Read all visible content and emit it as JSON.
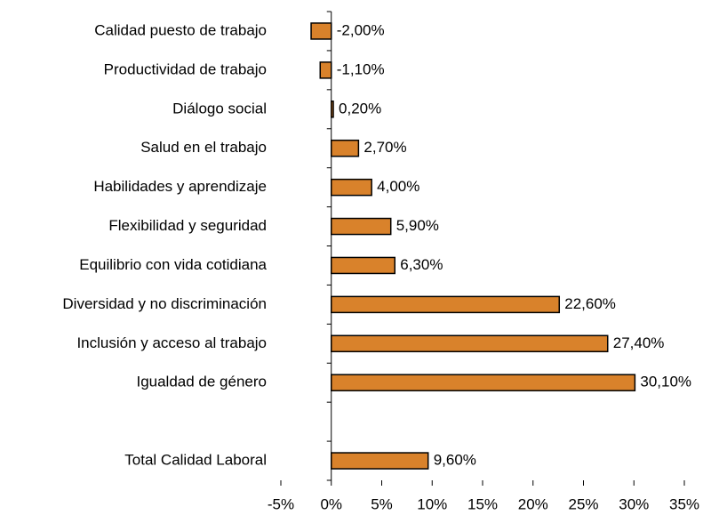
{
  "chart_data": {
    "type": "bar",
    "orientation": "horizontal",
    "categories": [
      "Calidad puesto de trabajo",
      "Productividad de trabajo",
      "Diálogo social",
      "Salud en el trabajo",
      "Habilidades y aprendizaje",
      "Flexibilidad y seguridad",
      "Equilibrio con vida cotidiana",
      "Diversidad y no discriminación",
      "Inclusión y acceso al trabajo",
      "Igualdad de género",
      null,
      "Total Calidad Laboral"
    ],
    "values": [
      -2.0,
      -1.1,
      0.2,
      2.7,
      4.0,
      5.9,
      6.3,
      22.6,
      27.4,
      30.1,
      null,
      9.6
    ],
    "value_labels": [
      "-2,00%",
      "-1,10%",
      "0,20%",
      "2,70%",
      "4,00%",
      "5,90%",
      "6,30%",
      "22,60%",
      "27,40%",
      "30,10%",
      null,
      "9,60%"
    ],
    "color": "#d9822b",
    "xlim": [
      -5,
      35
    ],
    "xticks": [
      {
        "value": -5,
        "label": "-5%"
      },
      {
        "value": 0,
        "label": "0%"
      },
      {
        "value": 5,
        "label": "5%"
      },
      {
        "value": 10,
        "label": "10%"
      },
      {
        "value": 15,
        "label": "15%"
      },
      {
        "value": 20,
        "label": "20%"
      },
      {
        "value": 25,
        "label": "25%"
      },
      {
        "value": 30,
        "label": "30%"
      },
      {
        "value": 35,
        "label": "35%"
      }
    ],
    "grid": false
  }
}
